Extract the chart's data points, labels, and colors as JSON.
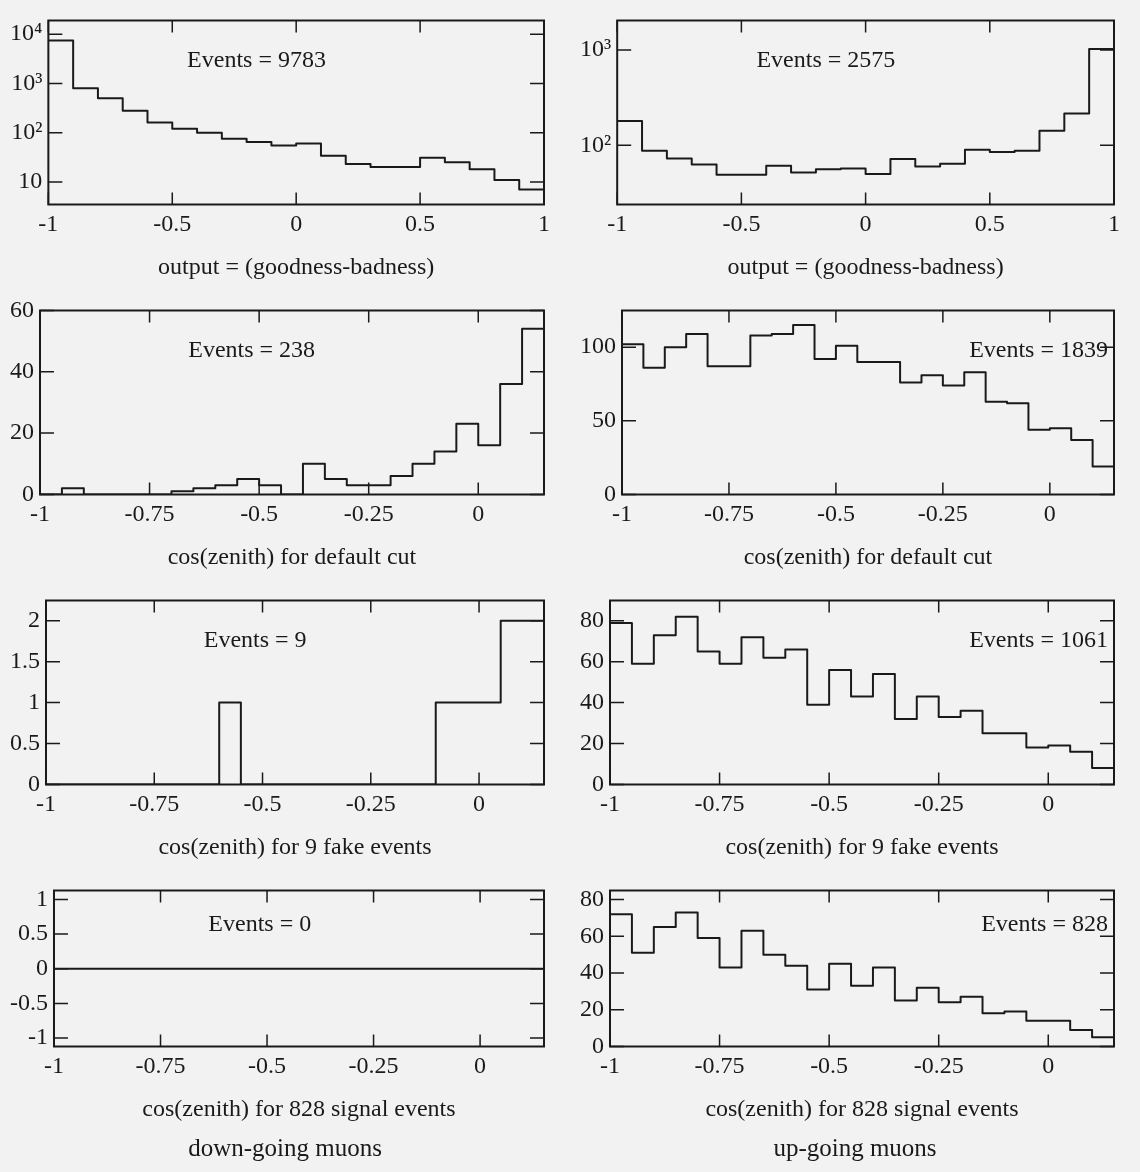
{
  "chart_data": [
    {
      "type": "histogram",
      "xlabel": "output = (goodness-badness)",
      "annotations": [
        "Events = 9783"
      ],
      "color": "#1a1a1a",
      "log": true,
      "grid": false,
      "legend": false,
      "bins": [
        -1,
        -0.9,
        -0.8,
        -0.7,
        -0.6,
        -0.5,
        -0.4,
        -0.3,
        -0.2,
        -0.1,
        0,
        0.1,
        0.2,
        0.3,
        0.4,
        0.5,
        0.6,
        0.7,
        0.8,
        0.9,
        1
      ],
      "values": [
        7400,
        800,
        500,
        280,
        160,
        120,
        100,
        75,
        65,
        55,
        60,
        34,
        23,
        20,
        20,
        31,
        25,
        18,
        11,
        7
      ],
      "xlim": [
        -1,
        1
      ],
      "xticks": [
        -1,
        -0.5,
        0,
        0.5,
        1
      ],
      "ylim": [
        3.5,
        19000
      ],
      "yticks": [
        10,
        {
          "value": 100,
          "label": "10²"
        },
        {
          "value": 1000,
          "label": "10³"
        },
        {
          "value": 10000,
          "label": "10⁴"
        }
      ]
    },
    {
      "type": "histogram",
      "xlabel": "output = (goodness-badness)",
      "annotations": [
        "Events = 2575"
      ],
      "color": "#1a1a1a",
      "log": true,
      "grid": false,
      "legend": false,
      "bins": [
        -1,
        -0.9,
        -0.8,
        -0.7,
        -0.6,
        -0.5,
        -0.4,
        -0.3,
        -0.2,
        -0.1,
        0,
        0.1,
        0.2,
        0.3,
        0.4,
        0.5,
        0.6,
        0.7,
        0.8,
        0.9,
        1
      ],
      "values": [
        180,
        88,
        73,
        63,
        49,
        49,
        61,
        52,
        56,
        57,
        50,
        72,
        60,
        64,
        90,
        85,
        88,
        142,
        216,
        1030
      ],
      "xlim": [
        -1,
        1
      ],
      "xticks": [
        -1,
        -0.5,
        0,
        0.5,
        1
      ],
      "ylim": [
        24,
        2050
      ],
      "yticks": [
        {
          "value": 100,
          "label": "10²"
        },
        {
          "value": 1000,
          "label": "10³"
        }
      ]
    },
    {
      "type": "histogram",
      "xlabel": "cos(zenith) for default cut",
      "annotations": [
        "Events = 238"
      ],
      "color": "#1a1a1a",
      "grid": false,
      "legend": false,
      "bins": [
        -1,
        -0.95,
        -0.9,
        -0.85,
        -0.8,
        -0.75,
        -0.7,
        -0.65,
        -0.6,
        -0.55,
        -0.5,
        -0.45,
        -0.4,
        -0.35,
        -0.3,
        -0.25,
        -0.2,
        -0.15,
        -0.1,
        -0.05,
        0,
        0.05,
        0.1,
        0.15
      ],
      "values": [
        0,
        2,
        0,
        0,
        0,
        0,
        1,
        2,
        3,
        5,
        3,
        0,
        10,
        5,
        3,
        3,
        6,
        10,
        14,
        23,
        16,
        36,
        54
      ],
      "xlim": [
        -1,
        0.15
      ],
      "xticks": [
        -1,
        -0.75,
        -0.5,
        -0.25,
        0
      ],
      "ylim": [
        0,
        60
      ],
      "yticks": [
        0,
        20,
        40,
        60
      ]
    },
    {
      "type": "histogram",
      "xlabel": "cos(zenith) for default cut",
      "annotations": [
        "Events = 1839"
      ],
      "color": "#1a1a1a",
      "grid": false,
      "legend": false,
      "bins": [
        -1,
        -0.95,
        -0.9,
        -0.85,
        -0.8,
        -0.75,
        -0.7,
        -0.65,
        -0.6,
        -0.55,
        -0.5,
        -0.45,
        -0.4,
        -0.35,
        -0.3,
        -0.25,
        -0.2,
        -0.15,
        -0.1,
        -0.05,
        0,
        0.05,
        0.1,
        0.15
      ],
      "values": [
        102,
        86,
        100,
        109,
        87,
        87,
        108,
        109,
        115,
        92,
        101,
        90,
        90,
        76,
        81,
        74,
        83,
        63,
        62,
        44,
        45,
        37,
        19
      ],
      "xlim": [
        -1,
        0.15
      ],
      "xticks": [
        -1,
        -0.75,
        -0.5,
        -0.25,
        0
      ],
      "ylim": [
        0,
        125
      ],
      "yticks": [
        0,
        50,
        100
      ]
    },
    {
      "type": "histogram",
      "xlabel": "cos(zenith) for 9 fake events",
      "annotations": [
        "Events = 9"
      ],
      "color": "#1a1a1a",
      "grid": false,
      "legend": false,
      "bins": [
        -1,
        -0.95,
        -0.9,
        -0.85,
        -0.8,
        -0.75,
        -0.7,
        -0.65,
        -0.6,
        -0.55,
        -0.5,
        -0.45,
        -0.4,
        -0.35,
        -0.3,
        -0.25,
        -0.2,
        -0.15,
        -0.1,
        -0.05,
        0,
        0.05,
        0.1,
        0.15
      ],
      "values": [
        0,
        0,
        0,
        0,
        0,
        0,
        0,
        0,
        1,
        0,
        0,
        0,
        0,
        0,
        0,
        0,
        0,
        0,
        1,
        1,
        1,
        2,
        2
      ],
      "xlim": [
        -1,
        0.15
      ],
      "xticks": [
        -1,
        -0.75,
        -0.5,
        -0.25,
        0
      ],
      "ylim": [
        0,
        2.25
      ],
      "yticks": [
        0,
        0.5,
        1,
        1.5,
        2
      ]
    },
    {
      "type": "histogram",
      "xlabel": "cos(zenith) for 9 fake events",
      "annotations": [
        "Events = 1061"
      ],
      "color": "#1a1a1a",
      "grid": false,
      "legend": false,
      "bins": [
        -1,
        -0.95,
        -0.9,
        -0.85,
        -0.8,
        -0.75,
        -0.7,
        -0.65,
        -0.6,
        -0.55,
        -0.5,
        -0.45,
        -0.4,
        -0.35,
        -0.3,
        -0.25,
        -0.2,
        -0.15,
        -0.1,
        -0.05,
        0,
        0.05,
        0.1,
        0.15
      ],
      "values": [
        79,
        59,
        73,
        82,
        65,
        59,
        72,
        62,
        66,
        39,
        56,
        43,
        54,
        32,
        43,
        33,
        36,
        25,
        25,
        18,
        19,
        16,
        8
      ],
      "xlim": [
        -1,
        0.15
      ],
      "xticks": [
        -1,
        -0.75,
        -0.5,
        -0.25,
        0
      ],
      "ylim": [
        0,
        90
      ],
      "yticks": [
        0,
        20,
        40,
        60,
        80
      ]
    },
    {
      "type": "histogram",
      "xlabel": "cos(zenith) for 828 signal events",
      "annotations": [
        "Events = 0",
        "down-going muons"
      ],
      "color": "#1a1a1a",
      "grid": false,
      "legend": false,
      "bins": [
        -1,
        -0.95,
        -0.9,
        -0.85,
        -0.8,
        -0.75,
        -0.7,
        -0.65,
        -0.6,
        -0.55,
        -0.5,
        -0.45,
        -0.4,
        -0.35,
        -0.3,
        -0.25,
        -0.2,
        -0.15,
        -0.1,
        -0.05,
        0,
        0.05,
        0.1,
        0.15
      ],
      "values": [
        0,
        0,
        0,
        0,
        0,
        0,
        0,
        0,
        0,
        0,
        0,
        0,
        0,
        0,
        0,
        0,
        0,
        0,
        0,
        0,
        0,
        0,
        0
      ],
      "xlim": [
        -1,
        0.15
      ],
      "xticks": [
        -1,
        -0.75,
        -0.5,
        -0.25,
        0
      ],
      "ylim": [
        -1.12,
        1.13
      ],
      "yticks": [
        -1,
        -0.5,
        0,
        0.5,
        1
      ]
    },
    {
      "type": "histogram",
      "xlabel": "cos(zenith) for 828 signal events",
      "annotations": [
        "Events = 828",
        "up-going muons"
      ],
      "color": "#1a1a1a",
      "grid": false,
      "legend": false,
      "bins": [
        -1,
        -0.95,
        -0.9,
        -0.85,
        -0.8,
        -0.75,
        -0.7,
        -0.65,
        -0.6,
        -0.55,
        -0.5,
        -0.45,
        -0.4,
        -0.35,
        -0.3,
        -0.25,
        -0.2,
        -0.15,
        -0.1,
        -0.05,
        0,
        0.05,
        0.1,
        0.15
      ],
      "values": [
        72,
        51,
        65,
        73,
        59,
        43,
        63,
        50,
        44,
        31,
        45,
        33,
        43,
        25,
        32,
        24,
        27,
        18,
        19,
        14,
        14,
        9,
        5
      ],
      "xlim": [
        -1,
        0.15
      ],
      "xticks": [
        -1,
        -0.75,
        -0.5,
        -0.25,
        0
      ],
      "ylim": [
        0,
        85
      ],
      "yticks": [
        0,
        20,
        40,
        60,
        80
      ]
    }
  ]
}
